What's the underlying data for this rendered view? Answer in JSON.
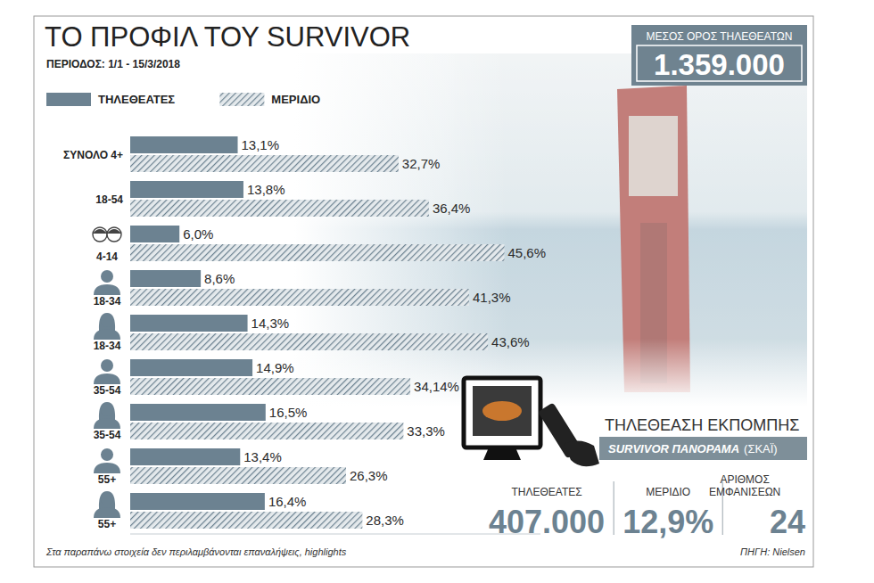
{
  "chart_data": {
    "type": "bar",
    "orientation": "horizontal",
    "title": "ΤΟ ΠΡΟΦΙΛ ΤΟΥ SURVIVOR",
    "subtitle": "ΠΕΡΙΟΔΟΣ: 1/1 - 15/3/2018",
    "categories": [
      "ΣΥΝΟΛΟ 4+",
      "18-54",
      "4-14",
      "18-34",
      "18-34",
      "35-54",
      "35-54",
      "55+",
      "55+"
    ],
    "series": [
      {
        "name": "ΤΗΛΕΘΕΑΤΕΣ",
        "color": "#6c8291",
        "values": [
          13.1,
          13.8,
          6.0,
          8.6,
          14.3,
          14.9,
          16.5,
          13.4,
          16.4
        ],
        "value_labels": [
          "13,1%",
          "13,8%",
          "6,0%",
          "8,6%",
          "14,3%",
          "14,9%",
          "16,5%",
          "13,4%",
          "16,4%"
        ]
      },
      {
        "name": "ΜΕΡΙΔΙΟ",
        "color": "#6c8291",
        "values": [
          32.7,
          36.4,
          45.6,
          41.3,
          43.6,
          34.14,
          33.3,
          26.3,
          28.3
        ],
        "value_labels": [
          "32,7%",
          "36,4%",
          "45,6%",
          "41,3%",
          "43,6%",
          "34,14%",
          "33,3%",
          "26,3%",
          "28,3%"
        ]
      }
    ],
    "xlim": [
      0,
      50
    ],
    "data_labels": true,
    "tick_labels": false,
    "grid": false,
    "legend": "top-left"
  },
  "average_box": {
    "label": "ΜΕΣΟΣ ΟΡΟΣ ΤΗΛΕΘΕΑΤΩΝ",
    "value": 1359000,
    "value_label": "1.359.000"
  },
  "show_panel": {
    "title": "ΤΗΛΕΘΕΑΣΗ ΕΚΠΟΜΠΗΣ",
    "program": "SURVIVOR ΠΑΝΟΡΑΜΑ",
    "channel": "(ΣΚΑΪ)",
    "stats": [
      {
        "label": "ΤΗΛΕΘΕΑΤΕΣ",
        "value": 407000,
        "value_label": "407.000"
      },
      {
        "label": "ΜΕΡΙΔΙΟ",
        "value": 12.9,
        "value_label": "12,9%"
      },
      {
        "label": "ΑΡΙΘΜΟΣ ΕΜΦΑΝΙΣΕΩΝ",
        "value": 24
      }
    ]
  },
  "footnote": "Στα παραπάνω στοιχεία δεν περιλαμβάνονται επαναλήψεις, highlights",
  "source": "ΠΗΓΗ: Nielsen"
}
